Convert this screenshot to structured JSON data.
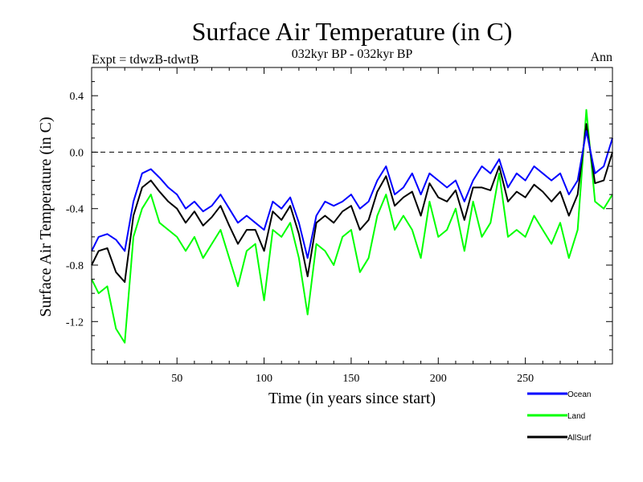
{
  "chart_data": {
    "type": "line",
    "title": "Surface Air Temperature (in C)",
    "subtitle": "032kyr BP - 032kyr BP",
    "left_label": "Expt = tdwzB-tdwtB",
    "right_label": "Ann",
    "xlabel": "Time (in years since start)",
    "ylabel": "Surface Air Temperature (in C)",
    "xlim": [
      1,
      300
    ],
    "ylim": [
      -1.5,
      0.6
    ],
    "x_ticks": [
      50,
      100,
      150,
      200,
      250
    ],
    "x_tick_labels": [
      "50",
      "100",
      "150",
      "200",
      "250"
    ],
    "y_ticks": [
      0.4,
      0.0,
      -0.4,
      -0.8,
      -1.2
    ],
    "y_tick_labels": [
      "0.4",
      "0.0",
      "-0.4",
      "-0.8",
      "-1.2"
    ],
    "reference_line": {
      "y": 0.0,
      "style": "dashed"
    },
    "legend_position": "bottom-right, outside plot",
    "x": [
      1,
      5,
      10,
      15,
      20,
      25,
      30,
      35,
      40,
      45,
      50,
      55,
      60,
      65,
      70,
      75,
      80,
      85,
      90,
      95,
      100,
      105,
      110,
      115,
      120,
      125,
      130,
      135,
      140,
      145,
      150,
      155,
      160,
      165,
      170,
      175,
      180,
      185,
      190,
      195,
      200,
      205,
      210,
      215,
      220,
      225,
      230,
      235,
      240,
      245,
      250,
      255,
      260,
      265,
      270,
      275,
      280,
      285,
      290,
      295,
      300
    ],
    "series": [
      {
        "name": "Ocean",
        "color": "#0000ff",
        "values": [
          -0.7,
          -0.6,
          -0.58,
          -0.62,
          -0.7,
          -0.35,
          -0.15,
          -0.12,
          -0.18,
          -0.25,
          -0.3,
          -0.4,
          -0.35,
          -0.42,
          -0.38,
          -0.3,
          -0.4,
          -0.5,
          -0.45,
          -0.5,
          -0.55,
          -0.35,
          -0.4,
          -0.32,
          -0.5,
          -0.75,
          -0.45,
          -0.35,
          -0.38,
          -0.35,
          -0.3,
          -0.4,
          -0.35,
          -0.2,
          -0.1,
          -0.3,
          -0.25,
          -0.15,
          -0.3,
          -0.15,
          -0.2,
          -0.25,
          -0.2,
          -0.35,
          -0.2,
          -0.1,
          -0.15,
          -0.05,
          -0.25,
          -0.15,
          -0.2,
          -0.1,
          -0.15,
          -0.2,
          -0.15,
          -0.3,
          -0.2,
          0.15,
          -0.15,
          -0.1,
          0.1
        ]
      },
      {
        "name": "Land",
        "color": "#00ff00",
        "values": [
          -0.9,
          -1.0,
          -0.95,
          -1.25,
          -1.35,
          -0.6,
          -0.4,
          -0.3,
          -0.5,
          -0.55,
          -0.6,
          -0.7,
          -0.6,
          -0.75,
          -0.65,
          -0.55,
          -0.75,
          -0.95,
          -0.7,
          -0.65,
          -1.05,
          -0.55,
          -0.6,
          -0.5,
          -0.75,
          -1.15,
          -0.65,
          -0.7,
          -0.8,
          -0.6,
          -0.55,
          -0.85,
          -0.75,
          -0.45,
          -0.3,
          -0.55,
          -0.45,
          -0.55,
          -0.75,
          -0.35,
          -0.6,
          -0.55,
          -0.4,
          -0.7,
          -0.35,
          -0.6,
          -0.5,
          -0.15,
          -0.6,
          -0.55,
          -0.6,
          -0.45,
          -0.55,
          -0.65,
          -0.5,
          -0.75,
          -0.55,
          0.3,
          -0.35,
          -0.4,
          -0.3
        ]
      },
      {
        "name": "AllSurf",
        "color": "#000000",
        "values": [
          -0.8,
          -0.7,
          -0.68,
          -0.85,
          -0.92,
          -0.45,
          -0.25,
          -0.2,
          -0.28,
          -0.35,
          -0.4,
          -0.5,
          -0.42,
          -0.52,
          -0.46,
          -0.38,
          -0.52,
          -0.65,
          -0.55,
          -0.55,
          -0.7,
          -0.42,
          -0.48,
          -0.38,
          -0.58,
          -0.88,
          -0.5,
          -0.45,
          -0.5,
          -0.42,
          -0.38,
          -0.55,
          -0.48,
          -0.28,
          -0.17,
          -0.38,
          -0.32,
          -0.28,
          -0.45,
          -0.22,
          -0.32,
          -0.35,
          -0.27,
          -0.48,
          -0.25,
          -0.25,
          -0.27,
          -0.1,
          -0.35,
          -0.28,
          -0.32,
          -0.23,
          -0.28,
          -0.35,
          -0.28,
          -0.45,
          -0.3,
          0.2,
          -0.22,
          -0.2,
          0.0
        ]
      }
    ]
  }
}
